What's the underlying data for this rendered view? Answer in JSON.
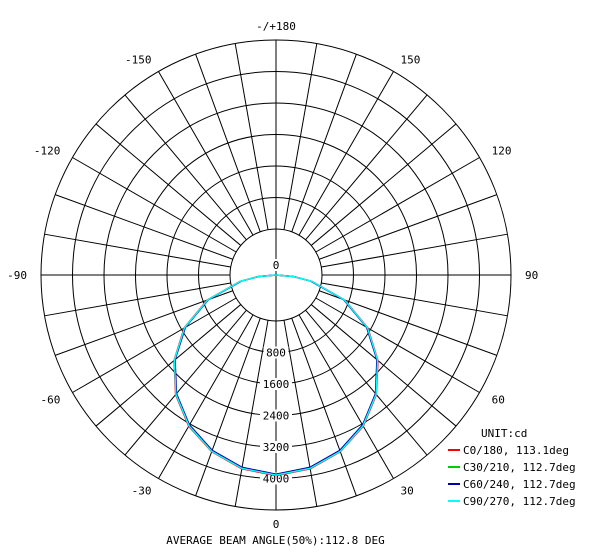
{
  "chart_data": {
    "type": "polar-line",
    "unit_label": "UNIT:cd",
    "footer_text": "AVERAGE BEAM ANGLE(50%):112.8 DEG",
    "radial_ticks": [
      "0",
      "800",
      "1600",
      "2400",
      "3200",
      "4000"
    ],
    "radial_max": 4800,
    "angle_labels": [
      {
        "angle": 0,
        "text": "0"
      },
      {
        "angle": 30,
        "text": "30"
      },
      {
        "angle": 60,
        "text": "60"
      },
      {
        "angle": 90,
        "text": "90"
      },
      {
        "angle": 120,
        "text": "120"
      },
      {
        "angle": 150,
        "text": "150"
      },
      {
        "angle": 180,
        "text": "-/+180"
      },
      {
        "angle": -150,
        "text": "-150"
      },
      {
        "angle": -120,
        "text": "-120"
      },
      {
        "angle": -90,
        "text": "-90"
      },
      {
        "angle": -60,
        "text": "-60"
      },
      {
        "angle": -30,
        "text": "-30"
      }
    ],
    "series": [
      {
        "name": "C0/180, 113.1deg",
        "color": "#ff0000",
        "angles": [
          0,
          10,
          20,
          30,
          40,
          50,
          60,
          70,
          80,
          85,
          90
        ],
        "values": [
          4160,
          4080,
          3900,
          3620,
          3240,
          2760,
          2200,
          1520,
          760,
          380,
          0
        ]
      },
      {
        "name": "C30/210, 112.7deg",
        "color": "#00cc00",
        "angles": [
          0,
          10,
          20,
          30,
          40,
          50,
          60,
          70,
          80,
          85,
          90
        ],
        "values": [
          4140,
          4060,
          3880,
          3600,
          3220,
          2740,
          2180,
          1500,
          740,
          360,
          0
        ]
      },
      {
        "name": "C60/240, 112.7deg",
        "color": "#0000aa",
        "angles": [
          0,
          10,
          20,
          30,
          40,
          50,
          60,
          70,
          80,
          85,
          90
        ],
        "values": [
          4130,
          4050,
          3870,
          3590,
          3210,
          2730,
          2170,
          1490,
          730,
          350,
          0
        ]
      },
      {
        "name": "C90/270, 112.7deg",
        "color": "#00ffff",
        "angles": [
          0,
          10,
          20,
          30,
          40,
          50,
          60,
          70,
          80,
          85,
          90
        ],
        "values": [
          4150,
          4070,
          3890,
          3610,
          3230,
          2750,
          2190,
          1510,
          750,
          370,
          0
        ]
      }
    ]
  }
}
